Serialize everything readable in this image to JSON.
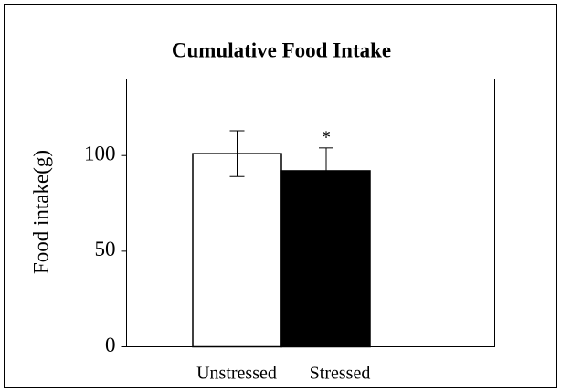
{
  "chart_data": {
    "type": "bar",
    "title": "Cumulative Food Intake",
    "y_label": "Food intake(g)",
    "categories": [
      "Unstressed",
      "Stressed"
    ],
    "values": [
      101,
      92
    ],
    "errors": [
      12,
      12
    ],
    "colors": [
      "#ffffff",
      "#000000"
    ],
    "annotation": "*",
    "ylim": [
      0,
      140
    ],
    "yticks": [
      0,
      50,
      100
    ]
  }
}
